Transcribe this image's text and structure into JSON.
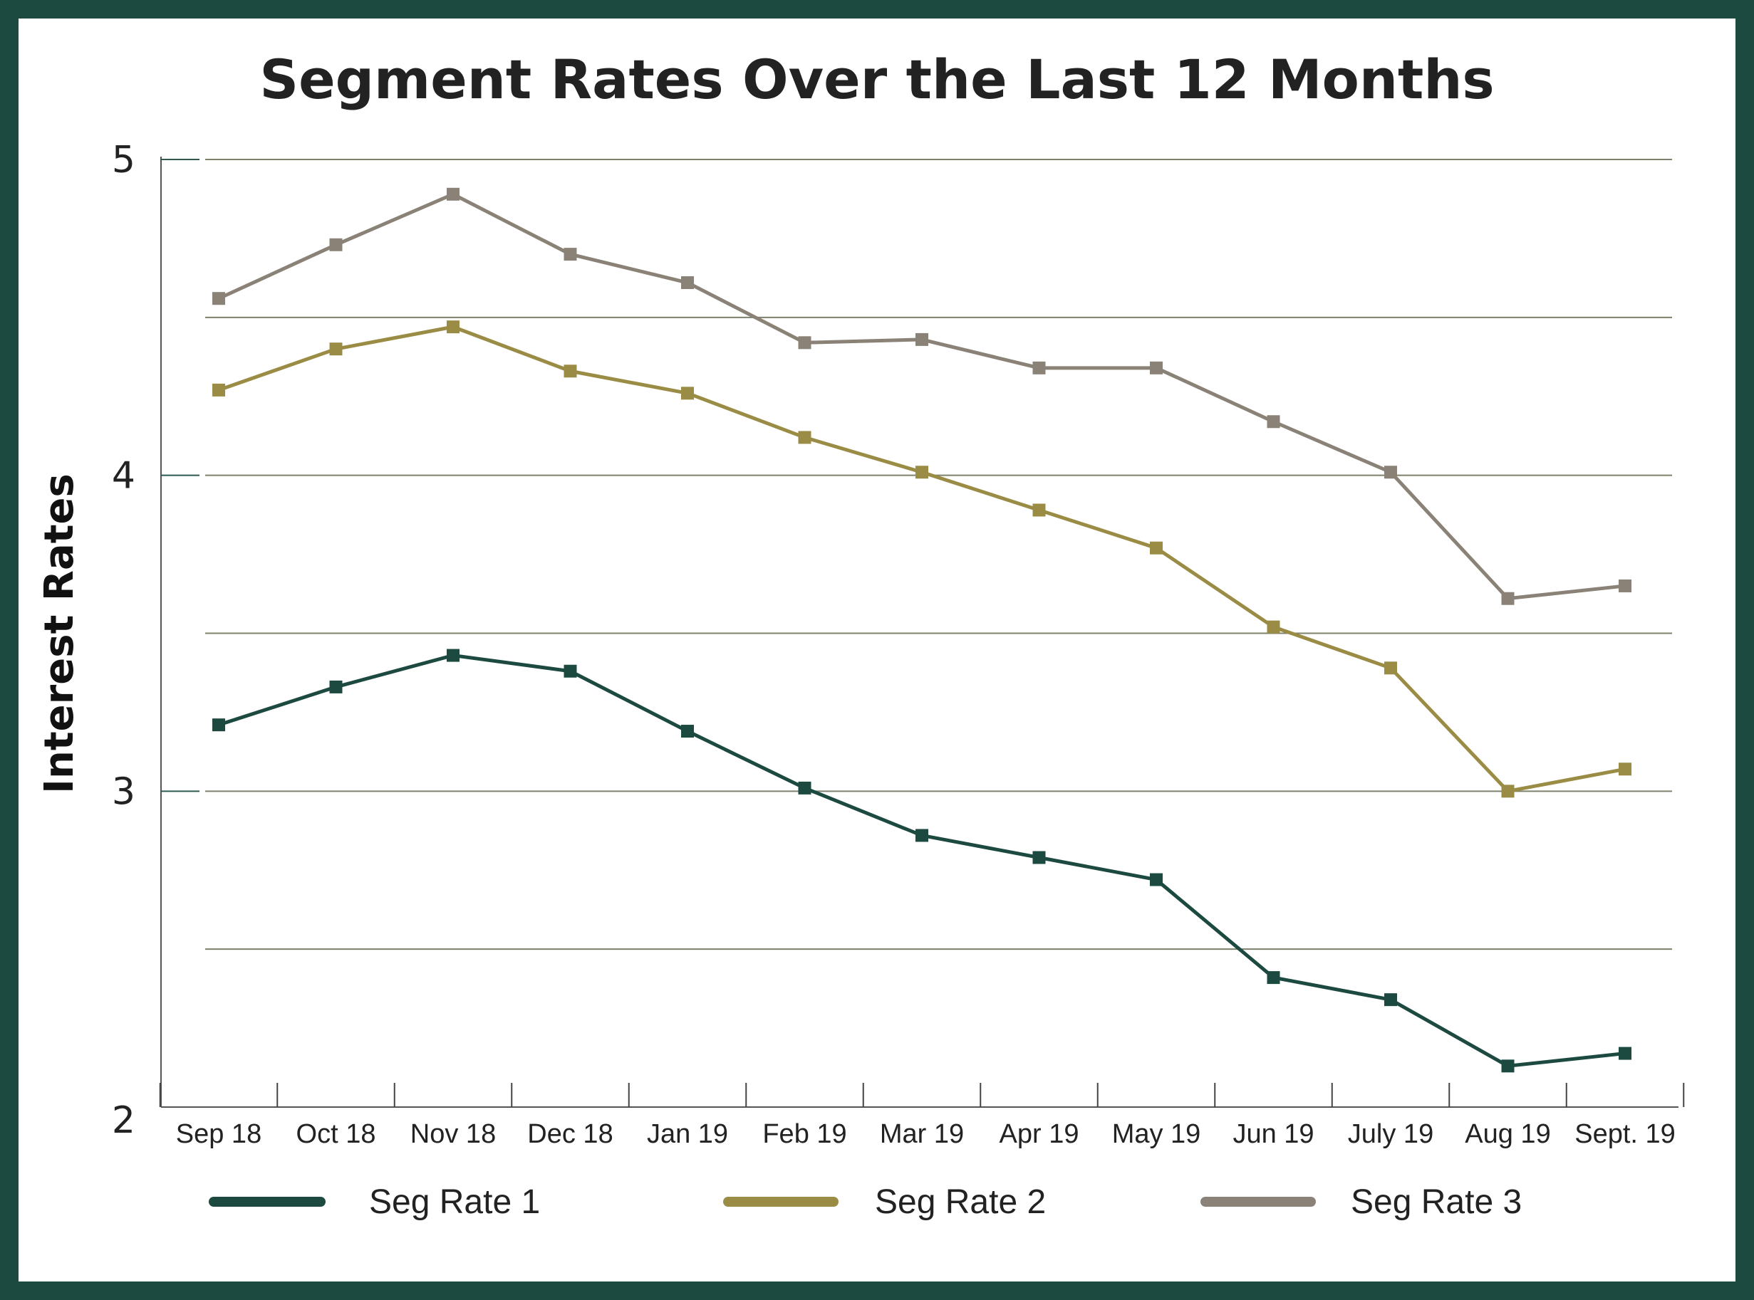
{
  "chart_data": {
    "type": "line",
    "title": "Segment Rates Over the Last 12 Months",
    "xlabel": "",
    "ylabel": "Interest Rates",
    "categories": [
      "Sep 18",
      "Oct 18",
      "Nov 18",
      "Dec 18",
      "Jan 19",
      "Feb 19",
      "Mar 19",
      "Apr 19",
      "May 19",
      "Jun 19",
      "July 19",
      "Aug 19",
      "Sept. 19"
    ],
    "ylim": [
      2,
      5
    ],
    "yticks": [
      2,
      3,
      4,
      5
    ],
    "gridlines": [
      2.5,
      3,
      3.5,
      4,
      4.5,
      5
    ],
    "legend_position": "bottom",
    "series": [
      {
        "name": "Seg Rate 1",
        "color": "#1d4a40",
        "values": [
          3.21,
          3.33,
          3.43,
          3.38,
          3.19,
          3.01,
          2.86,
          2.79,
          2.72,
          2.41,
          2.34,
          2.13,
          2.17
        ]
      },
      {
        "name": "Seg Rate 2",
        "color": "#9a8c45",
        "values": [
          4.27,
          4.4,
          4.47,
          4.33,
          4.26,
          4.12,
          4.01,
          3.89,
          3.77,
          3.52,
          3.39,
          3.0,
          3.07
        ]
      },
      {
        "name": "Seg Rate 3",
        "color": "#8a8276",
        "values": [
          4.56,
          4.73,
          4.89,
          4.7,
          4.61,
          4.42,
          4.43,
          4.34,
          4.34,
          4.17,
          4.01,
          3.61,
          3.65
        ]
      }
    ]
  }
}
